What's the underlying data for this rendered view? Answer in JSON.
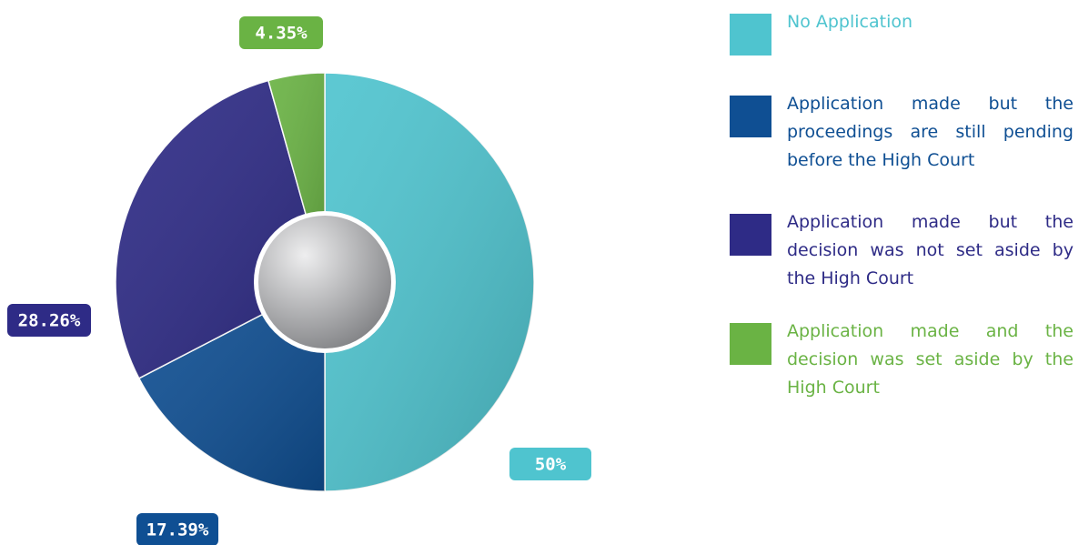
{
  "chart_data": {
    "type": "pie",
    "donut": true,
    "categories": [
      "No Application",
      "Application made but the proceedings are still pending before the High Court",
      "Application made but the decision was not set aside by the High Court",
      "Application made and the decision was set aside by the High Court"
    ],
    "values": [
      50,
      17.39,
      28.26,
      4.35
    ],
    "value_labels": [
      "50%",
      "17.39%",
      "28.26%",
      "4.35%"
    ],
    "colors": [
      "#4fc4cf",
      "#0f4f93",
      "#2e2b86",
      "#6ab344"
    ]
  }
}
